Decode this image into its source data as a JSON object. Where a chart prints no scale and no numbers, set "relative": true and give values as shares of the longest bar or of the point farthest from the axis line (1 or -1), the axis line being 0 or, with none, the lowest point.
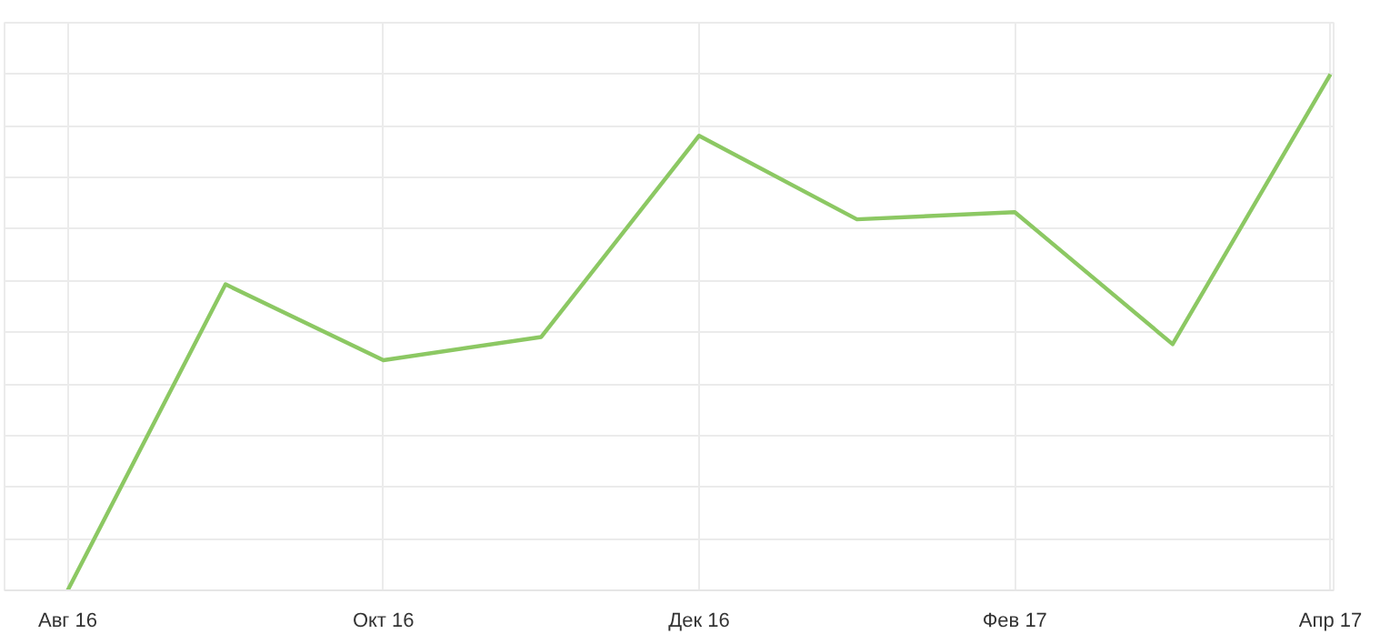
{
  "chart_data": {
    "type": "line",
    "relative": true,
    "categories": [
      "Авг 16",
      null,
      "Окт 16",
      null,
      "Дек 16",
      null,
      "Фев 17",
      null,
      "Апр 17"
    ],
    "series": [
      {
        "color": "#8cc863",
        "values": [
          0,
          0.593,
          0.446,
          0.491,
          0.881,
          0.719,
          0.733,
          0.477,
          1
        ]
      }
    ],
    "grid": true,
    "marker": "none",
    "line_style": "solid"
  }
}
